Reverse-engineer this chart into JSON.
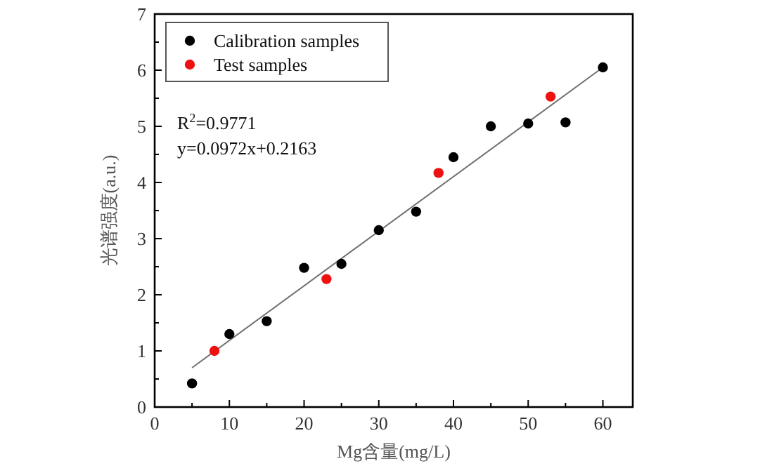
{
  "chart_data": {
    "type": "scatter",
    "xlabel": "Mg含量(mg/L)",
    "ylabel": "光谱强度(a.u.)",
    "xlim": [
      0,
      64
    ],
    "ylim": [
      0,
      7
    ],
    "xticks": [
      0,
      {
        "value": 5,
        "label": null
      },
      10,
      {
        "value": 15,
        "label": null
      },
      20,
      {
        "value": 25,
        "label": null
      },
      30,
      {
        "value": 35,
        "label": null
      },
      40,
      {
        "value": 45,
        "label": null
      },
      50,
      {
        "value": 55,
        "label": null
      },
      60
    ],
    "yticks": [
      0,
      {
        "value": 0.5,
        "label": null
      },
      1,
      {
        "value": 1.5,
        "label": null
      },
      2,
      {
        "value": 2.5,
        "label": null
      },
      3,
      {
        "value": 3.5,
        "label": null
      },
      4,
      {
        "value": 4.5,
        "label": null
      },
      5,
      {
        "value": 5.5,
        "label": null
      },
      6,
      {
        "value": 6.5,
        "label": null
      },
      7
    ],
    "marker": "circle",
    "legend": "top left",
    "grid": false,
    "annotations": [
      "R$^{2}$=0.9771",
      "y=0.0972x+0.2163"
    ],
    "series": [
      {
        "type": "line",
        "marker": "none",
        "color": "#707070",
        "x": [
          5,
          60
        ],
        "values": [
          0.7,
          6.05
        ]
      },
      {
        "name": "Calibration samples",
        "color": "#000000",
        "x": [
          5,
          10,
          15,
          20,
          25,
          30,
          35,
          40,
          45,
          50,
          55,
          60
        ],
        "values": [
          0.42,
          1.3,
          1.53,
          2.48,
          2.55,
          3.15,
          3.48,
          4.45,
          5.0,
          5.05,
          5.07,
          6.05
        ]
      },
      {
        "name": "Test samples",
        "color": "#ee1111",
        "x": [
          8,
          23,
          38,
          53
        ],
        "values": [
          1.0,
          2.28,
          4.17,
          5.53
        ]
      }
    ]
  }
}
